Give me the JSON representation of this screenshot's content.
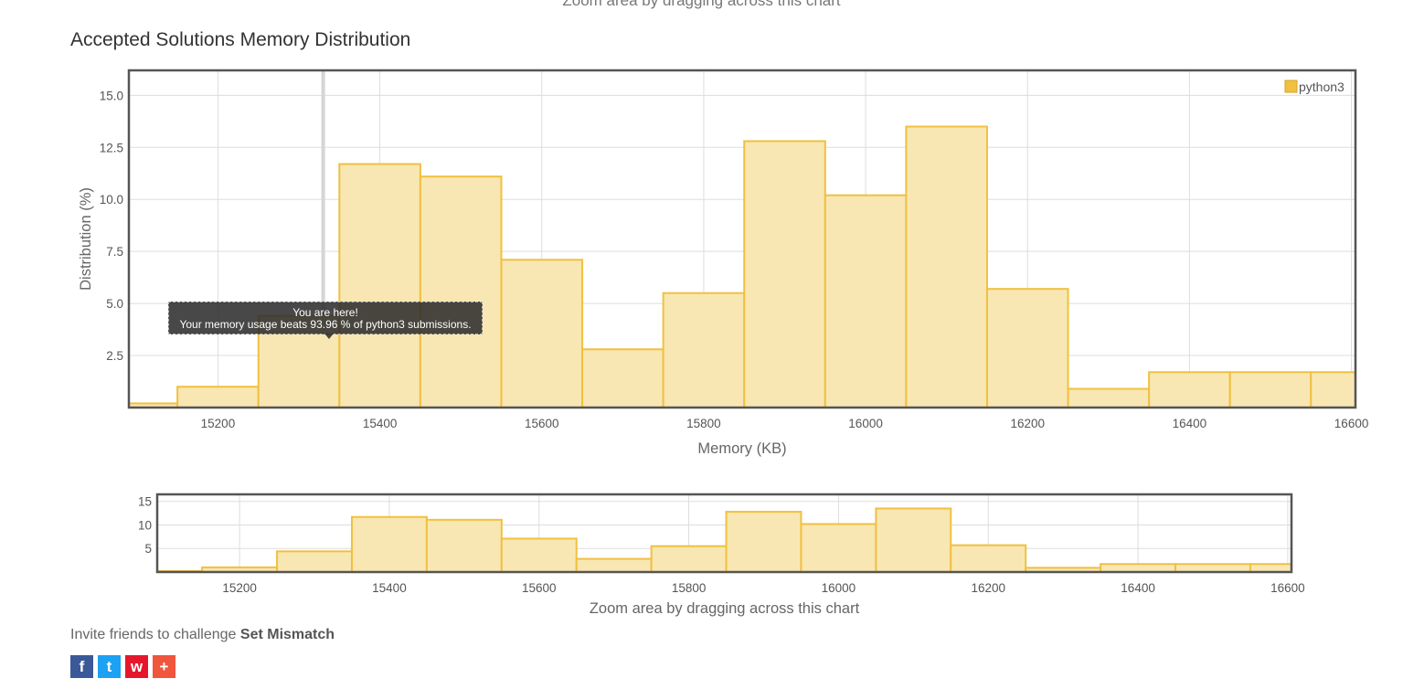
{
  "header": {
    "top_partial": "Zoom area by dragging across this chart",
    "title": "Accepted Solutions Memory Distribution"
  },
  "tooltip": {
    "line1": "You are here!",
    "line2": "Your memory usage beats 93.96 % of python3 submissions."
  },
  "chart_data": [
    {
      "type": "bar",
      "title": "Accepted Solutions Memory Distribution",
      "xlabel": "Memory (KB)",
      "ylabel": "Distribution (%)",
      "xlim": [
        15090,
        16605
      ],
      "ylim": [
        0,
        16.2
      ],
      "x_ticks": [
        15200,
        15400,
        15600,
        15800,
        16000,
        16200,
        16400,
        16600
      ],
      "y_ticks": [
        2.5,
        5.0,
        7.5,
        10.0,
        12.5,
        15.0
      ],
      "legend": {
        "label": "python3",
        "placement": "top-right"
      },
      "grid": true,
      "bar_color": "#f0c040",
      "bar_fill": "#f8e7b3",
      "marker_x": 15330,
      "bins": [
        {
          "x0": 15090,
          "x1": 15150,
          "value": 0.2
        },
        {
          "x0": 15150,
          "x1": 15250,
          "value": 1.0
        },
        {
          "x0": 15250,
          "x1": 15350,
          "value": 4.4
        },
        {
          "x0": 15350,
          "x1": 15450,
          "value": 11.7
        },
        {
          "x0": 15450,
          "x1": 15550,
          "value": 11.1
        },
        {
          "x0": 15550,
          "x1": 15650,
          "value": 7.1
        },
        {
          "x0": 15650,
          "x1": 15750,
          "value": 2.8
        },
        {
          "x0": 15750,
          "x1": 15850,
          "value": 5.5
        },
        {
          "x0": 15850,
          "x1": 15950,
          "value": 12.8
        },
        {
          "x0": 15950,
          "x1": 16050,
          "value": 10.2
        },
        {
          "x0": 16050,
          "x1": 16150,
          "value": 13.5
        },
        {
          "x0": 16150,
          "x1": 16250,
          "value": 5.7
        },
        {
          "x0": 16250,
          "x1": 16350,
          "value": 0.9
        },
        {
          "x0": 16350,
          "x1": 16450,
          "value": 1.7
        },
        {
          "x0": 16450,
          "x1": 16550,
          "value": 1.7
        },
        {
          "x0": 16550,
          "x1": 16605,
          "value": 1.7
        }
      ]
    },
    {
      "type": "bar",
      "title": "",
      "xlabel": "Zoom area by dragging across this chart",
      "xlim": [
        15090,
        16605
      ],
      "ylim": [
        0,
        16.5
      ],
      "x_ticks": [
        15200,
        15400,
        15600,
        15800,
        16000,
        16200,
        16400,
        16600
      ],
      "y_ticks": [
        5,
        10,
        15
      ],
      "grid": true
    }
  ],
  "footer": {
    "invite_prefix": "Invite friends to challenge ",
    "problem_name": "Set Mismatch",
    "share": [
      {
        "name": "facebook",
        "glyph": "f",
        "color": "#3b5998"
      },
      {
        "name": "twitter",
        "glyph": "t",
        "color": "#1da1f2"
      },
      {
        "name": "weibo",
        "glyph": "w",
        "color": "#e6162d"
      },
      {
        "name": "more",
        "glyph": "+",
        "color": "#f0553d"
      }
    ]
  }
}
